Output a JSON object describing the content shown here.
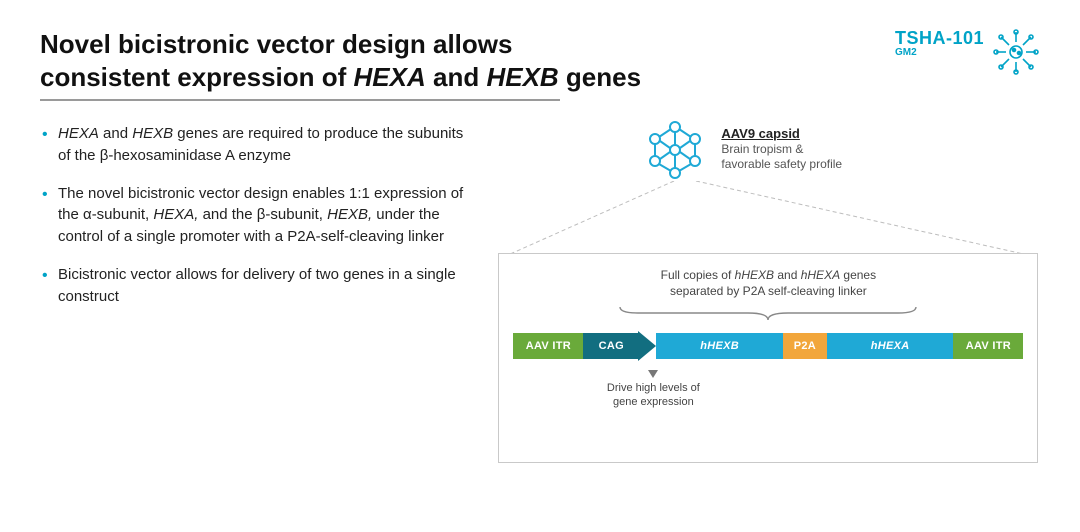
{
  "title": {
    "line1_pre": "Novel bicistronic vector design allows",
    "line2_pre": "consistent expression of ",
    "gene1": "HEXA",
    "and": " and ",
    "gene2": "HEXB",
    "line2_post": " genes"
  },
  "brand": {
    "code": "TSHA-101",
    "sub": "GM2",
    "accent": "#00a3c7"
  },
  "bullets": [
    {
      "pre": "",
      "i1": "HEXA",
      "mid1": " and ",
      "i2": "HEXB",
      "post": " genes are required to produce the subunits of the β-hexosaminidase A enzyme"
    },
    {
      "pre": "The novel bicistronic vector design enables 1:1 expression of the α-subunit, ",
      "i1": "HEXA,",
      "mid1": " and the β-subunit, ",
      "i2": "HEXB,",
      "post": " under the control of a single promoter with a P2A-self-cleaving linker"
    },
    {
      "pre": "Bicistronic vector allows for delivery of two genes in a single construct",
      "i1": "",
      "mid1": "",
      "i2": "",
      "post": ""
    }
  ],
  "capsid": {
    "title": "AAV9 capsid",
    "sub1": "Brain tropism &",
    "sub2": "favorable safety profile",
    "node_color": "#1fa9d6"
  },
  "panel": {
    "caption_l1_pre": "Full copies of ",
    "caption_i1": "hHEXB",
    "caption_mid": " and ",
    "caption_i2": "hHEXA",
    "caption_l1_post": " genes",
    "caption_l2": "separated by P2A self-cleaving linker",
    "lower_l1": "Drive high levels of",
    "lower_l2": "gene expression"
  },
  "construct": {
    "segments": {
      "aav_itr_left": "AAV ITR",
      "cag": "CAG",
      "hhexb": "hHEXB",
      "p2a": "P2A",
      "hhexa": "hHEXA",
      "aav_itr_right": "AAV ITR"
    },
    "colors": {
      "aav_itr": "#6aaa3a",
      "cag": "#126e80",
      "gene": "#1fa9d6",
      "p2a": "#f2a63b",
      "border": "#c9c9c9"
    }
  }
}
